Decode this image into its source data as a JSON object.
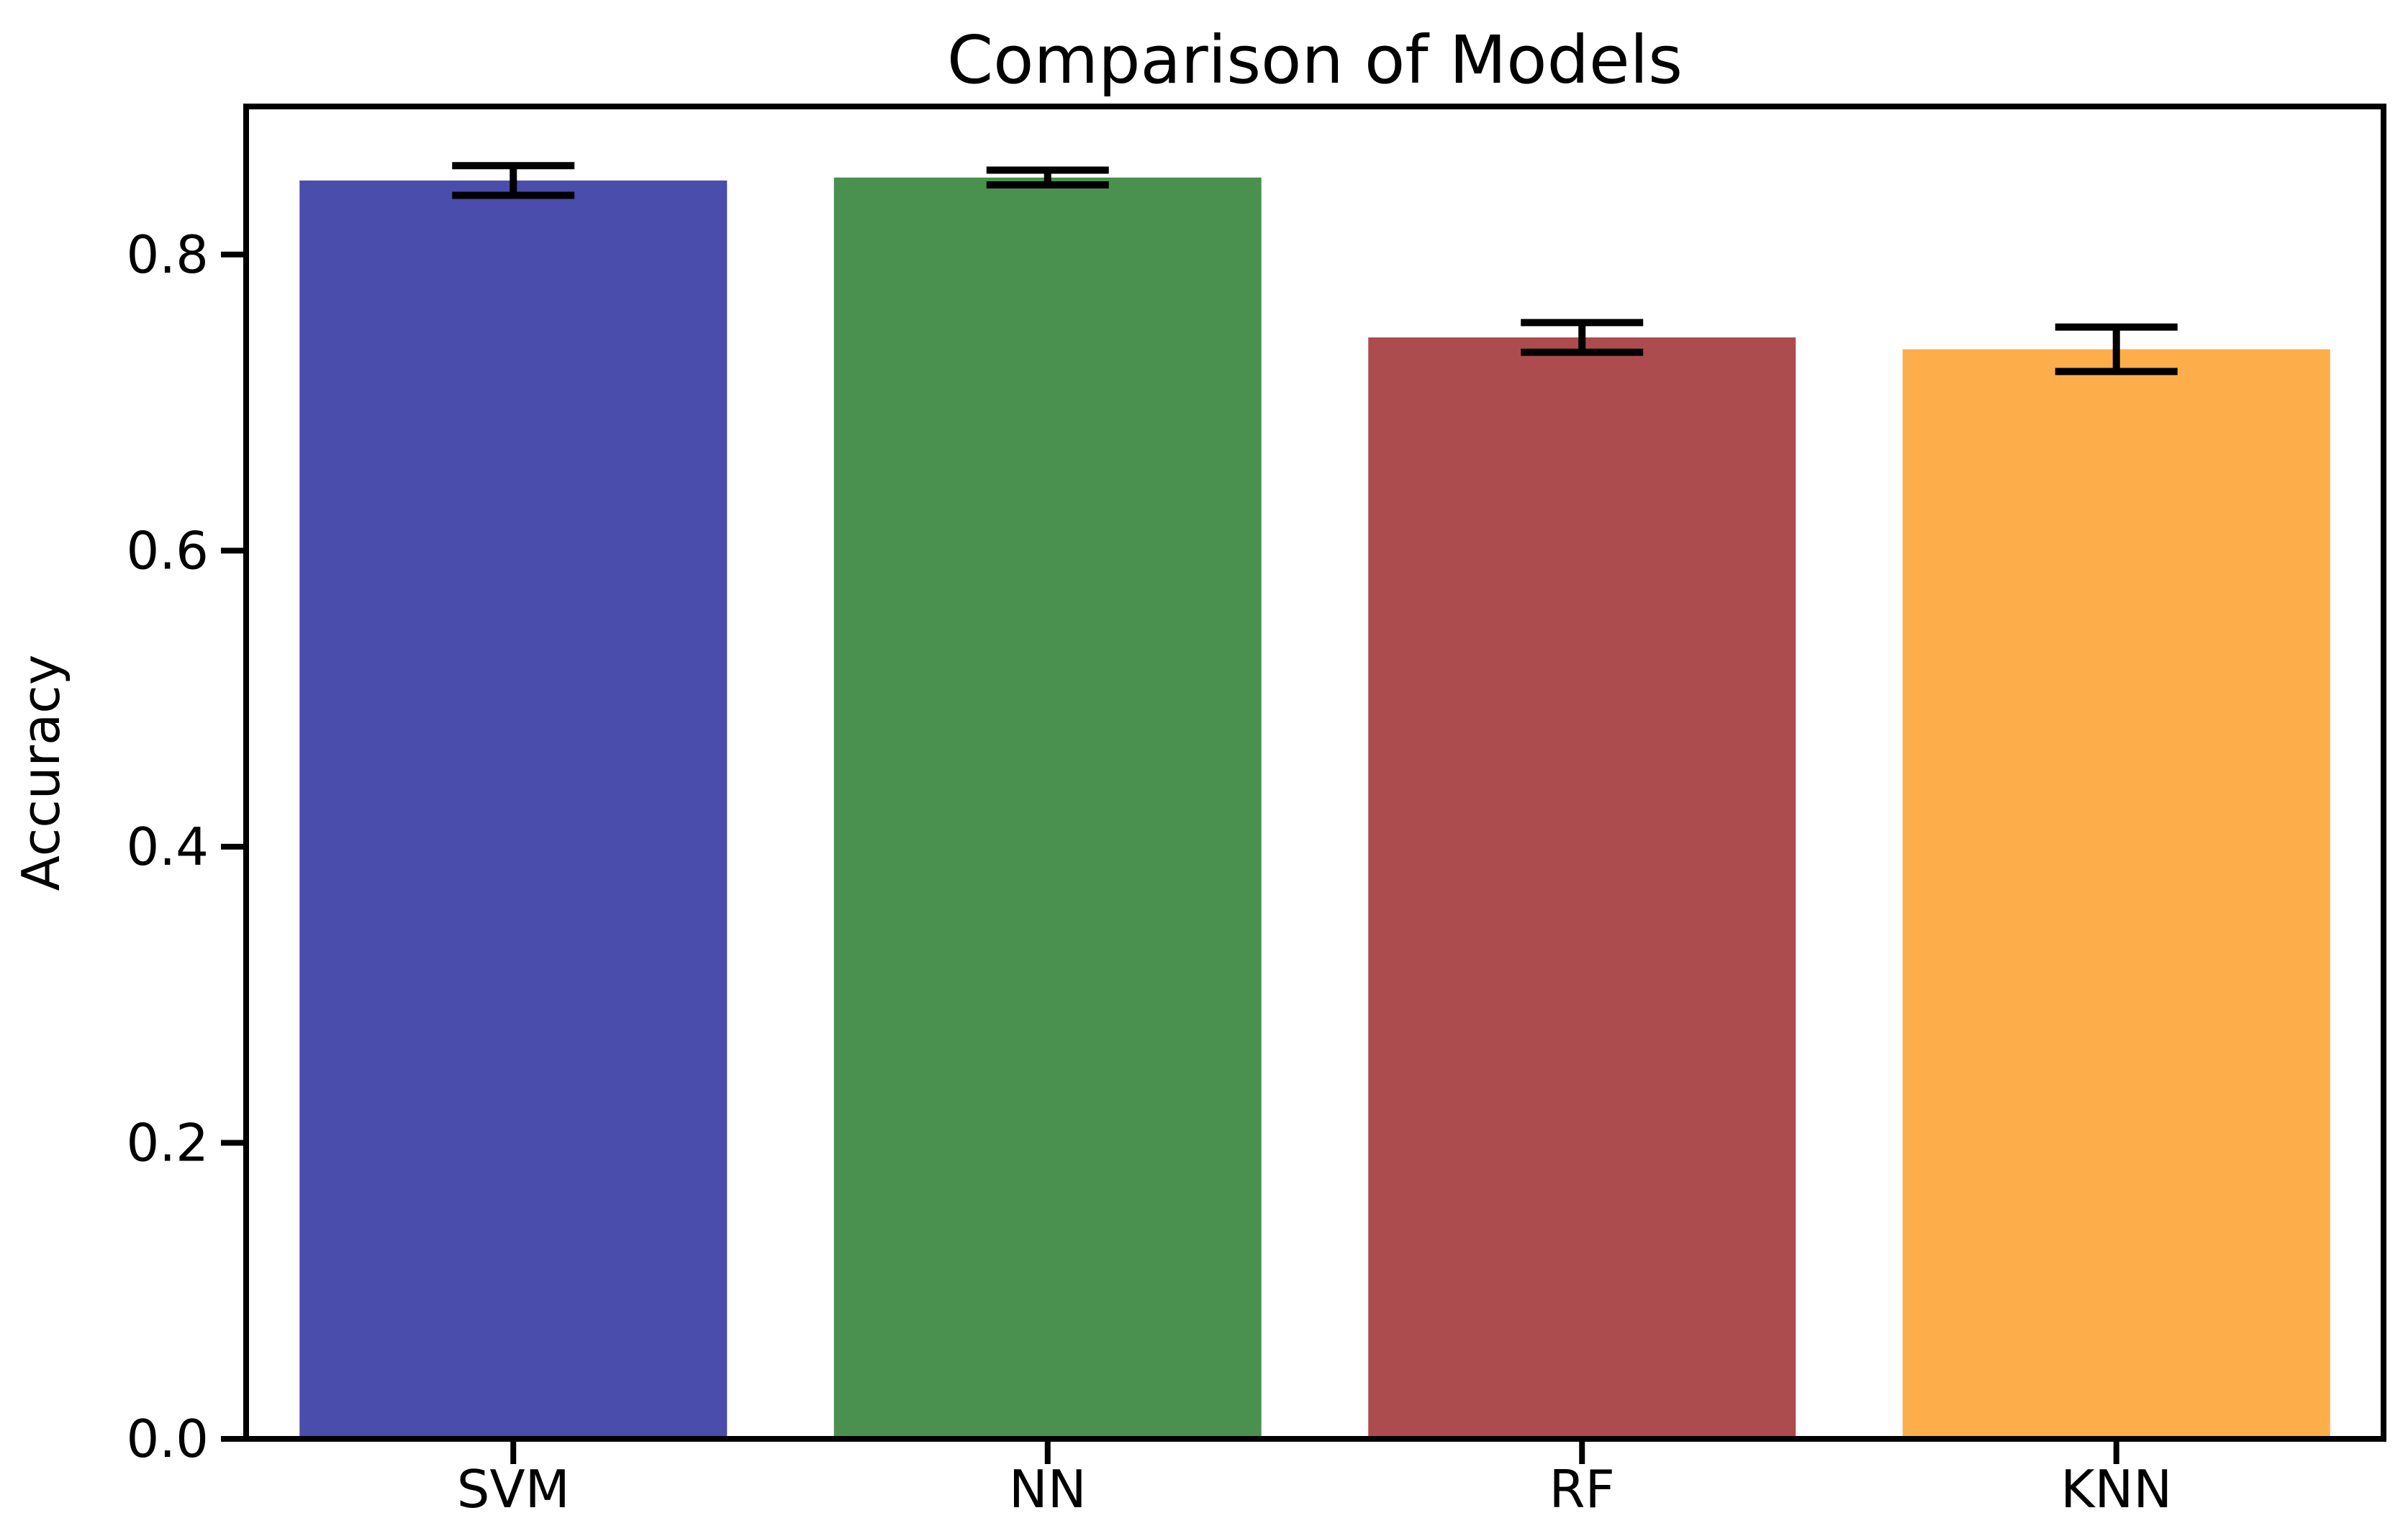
{
  "figure": {
    "background": "#ffffff"
  },
  "chart_data": {
    "type": "bar",
    "title": "Comparison of Models",
    "xlabel": "",
    "ylabel": "Accuracy",
    "categories": [
      "SVM",
      "NN",
      "RF",
      "KNN"
    ],
    "values": [
      0.85,
      0.852,
      0.744,
      0.736
    ],
    "error_bars": [
      0.01,
      0.005,
      0.01,
      0.015
    ],
    "bar_colors": [
      "#4b4dac",
      "#4a9150",
      "#ad4c4e",
      "#fdae4b"
    ],
    "error_bar_color": "#000000",
    "axis_color": "#000000",
    "yticks": [
      0.0,
      0.2,
      0.4,
      0.6,
      0.8
    ],
    "ytick_labels": [
      "0.0",
      "0.2",
      "0.4",
      "0.6",
      "0.8"
    ],
    "ylim": [
      0.0,
      0.9
    ],
    "grid": false,
    "legend": null,
    "bar_relative_width": 0.8
  }
}
